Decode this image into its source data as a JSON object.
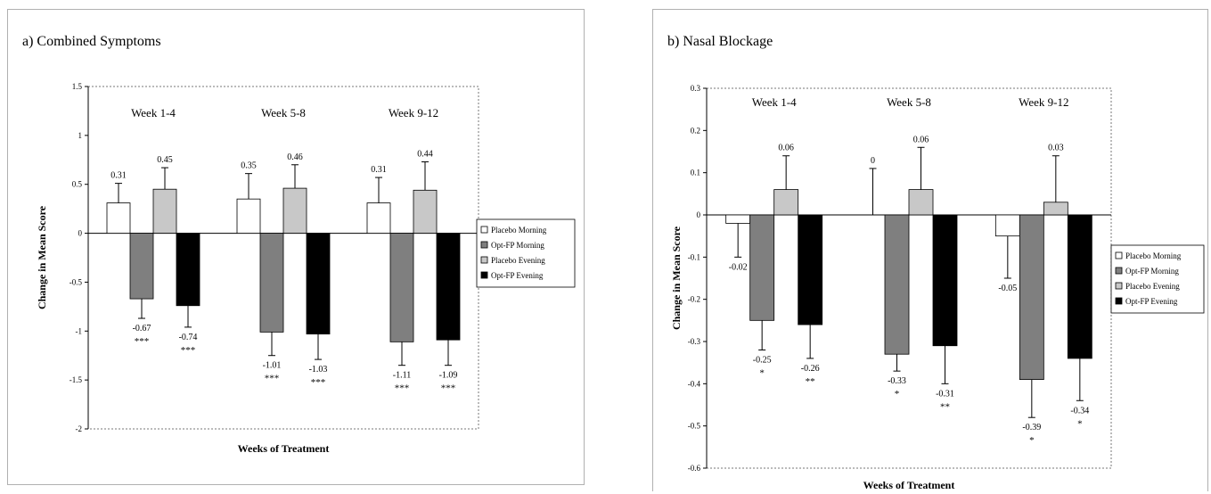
{
  "chart_data": [
    {
      "type": "bar",
      "title": "a) Combined Symptoms",
      "xlabel": "Weeks of Treatment",
      "ylabel": "Change in Mean Score",
      "ylim": [
        -2,
        1.5
      ],
      "yticks": [
        "1.5",
        "1",
        "0.5",
        "0",
        "-0.5",
        "-1",
        "-1.5",
        "-2"
      ],
      "categories": [
        "Week 1-4",
        "Week 5-8",
        "Week 9-12"
      ],
      "series": [
        {
          "name": "Placebo Morning",
          "values": [
            0.31,
            0.35,
            0.31
          ],
          "err": [
            0.2,
            0.26,
            0.26
          ],
          "labels": [
            "0.31",
            "0.35",
            "0.31"
          ],
          "sig": [
            "",
            "",
            ""
          ],
          "color": "#ffffff"
        },
        {
          "name": "Opt-FP Morning",
          "values": [
            -0.67,
            -1.01,
            -1.11
          ],
          "err": [
            0.2,
            0.24,
            0.24
          ],
          "labels": [
            "-0.67",
            "-1.01",
            "-1.11"
          ],
          "sig": [
            "***",
            "***",
            "***"
          ],
          "color": "#7f7f7f"
        },
        {
          "name": "Placebo Evening",
          "values": [
            0.45,
            0.46,
            0.44
          ],
          "err": [
            0.22,
            0.24,
            0.29
          ],
          "labels": [
            "0.45",
            "0.46",
            "0.44"
          ],
          "sig": [
            "",
            "",
            ""
          ],
          "color": "#c8c8c8"
        },
        {
          "name": "Opt-FP Evening",
          "values": [
            -0.74,
            -1.03,
            -1.09
          ],
          "err": [
            0.22,
            0.26,
            0.26
          ],
          "labels": [
            "-0.74",
            "-1.03",
            "-1.09"
          ],
          "sig": [
            "***",
            "***",
            "***"
          ],
          "color": "#000000"
        }
      ],
      "legend": "right",
      "grid": false
    },
    {
      "type": "bar",
      "title": "b)  Nasal Blockage",
      "xlabel": "Weeks of Treatment",
      "ylabel": "Change in Mean Score",
      "ylim": [
        -0.6,
        0.3
      ],
      "yticks": [
        "0.3",
        "0.2",
        "0.1",
        "0",
        "-0.1",
        "-0.2",
        "-0.3",
        "-0.4",
        "-0.5",
        "-0.6"
      ],
      "categories": [
        "Week 1-4",
        "Week 5-8",
        "Week 9-12"
      ],
      "series": [
        {
          "name": "Placebo Morning",
          "values": [
            -0.02,
            0,
            -0.05
          ],
          "err": [
            0.08,
            0.11,
            0.1
          ],
          "labels": [
            "-0.02",
            "0",
            "-0.05"
          ],
          "sig": [
            "",
            "",
            ""
          ],
          "color": "#ffffff"
        },
        {
          "name": "Opt-FP Morning",
          "values": [
            -0.25,
            -0.33,
            -0.39
          ],
          "err": [
            0.07,
            0.04,
            0.09
          ],
          "labels": [
            "-0.25",
            "-0.33",
            "-0.39"
          ],
          "sig": [
            "*",
            "*",
            "*"
          ],
          "color": "#7f7f7f"
        },
        {
          "name": "Placebo Evening",
          "values": [
            0.06,
            0.06,
            0.03
          ],
          "err": [
            0.08,
            0.1,
            0.11
          ],
          "labels": [
            "0.06",
            "0.06",
            "0.03"
          ],
          "sig": [
            "",
            "",
            ""
          ],
          "color": "#c8c8c8"
        },
        {
          "name": "Opt-FP Evening",
          "values": [
            -0.26,
            -0.31,
            -0.34
          ],
          "err": [
            0.08,
            0.09,
            0.1
          ],
          "labels": [
            "-0.26",
            "-0.31",
            "-0.34"
          ],
          "sig": [
            "**",
            "**",
            "*"
          ],
          "color": "#000000"
        }
      ],
      "legend": "right",
      "grid": false
    }
  ]
}
